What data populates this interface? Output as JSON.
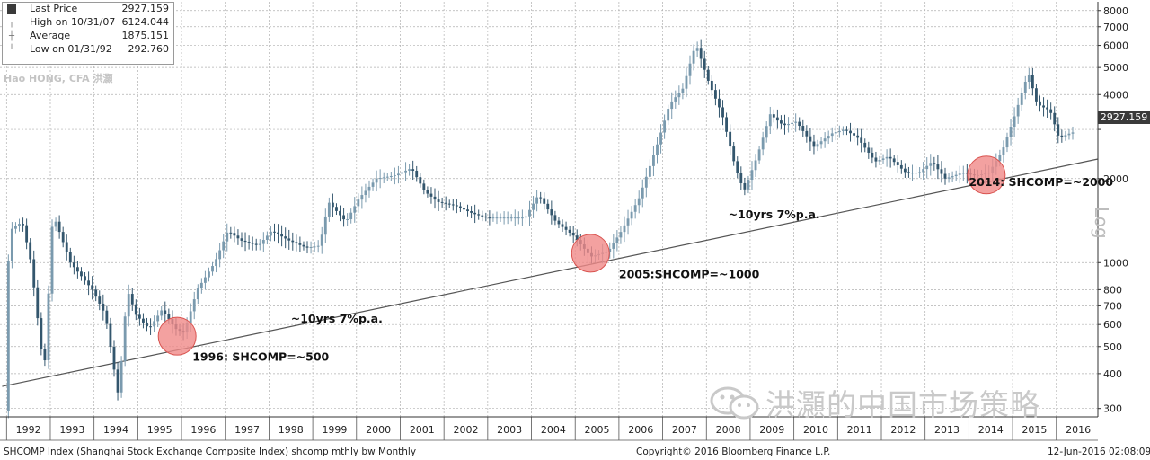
{
  "legend": {
    "rows": [
      {
        "icon": "square-icon",
        "label": "Last Price",
        "value": "2927.159"
      },
      {
        "icon": "high-marker-icon",
        "label": "High on 10/31/07",
        "value": "6124.044"
      },
      {
        "icon": "average-marker-icon",
        "label": "Average",
        "value": "1875.151"
      },
      {
        "icon": "low-marker-icon",
        "label": "Low on 01/31/92",
        "value": "292.760"
      }
    ]
  },
  "credit": "Hao HONG, CFA 洪灝",
  "watermark": "洪灝的中国市场策略",
  "footer": {
    "left": "SHCOMP Index (Shanghai Stock Exchange Composite Index) shcomp mthly bw  Monthly",
    "center": "Copyright© 2016 Bloomberg Finance L.P.",
    "right": "12-Jun-2016 02:08:09"
  },
  "colors": {
    "up": "#7a9aae",
    "down": "#33566d",
    "trend": "#555555",
    "circle": "#f08a88",
    "grid": "#b0b0b0"
  },
  "chart_data": {
    "type": "candlestick",
    "scale": "log",
    "ylim": [
      280,
      8600
    ],
    "y_ticks": [
      300,
      400,
      500,
      600,
      700,
      800,
      1000,
      2000,
      3000,
      4000,
      5000,
      6000,
      7000,
      8000
    ],
    "y_tick_labels": [
      "300",
      "400",
      "500",
      "600",
      "700",
      "800",
      "1000",
      "2000",
      "",
      "4000",
      "5000",
      "6000",
      "7000",
      "8000"
    ],
    "x_labels": [
      "1992",
      "1993",
      "1994",
      "1995",
      "1996",
      "1997",
      "1998",
      "1999",
      "2000",
      "2001",
      "2002",
      "2003",
      "2004",
      "2005",
      "2006",
      "2007",
      "2008",
      "2009",
      "2010",
      "2011",
      "2012",
      "2013",
      "2014",
      "2015",
      "2016"
    ],
    "last_price_label": "2927.159",
    "y_axis_title": "Log",
    "series": [
      {
        "x": 1992.0,
        "v": 292.76
      },
      {
        "x": 1992.1,
        "v": 1300
      },
      {
        "x": 1992.4,
        "v": 1400
      },
      {
        "x": 1992.6,
        "v": 1000
      },
      {
        "x": 1992.9,
        "v": 400
      },
      {
        "x": 1993.1,
        "v": 1500
      },
      {
        "x": 1993.5,
        "v": 1000
      },
      {
        "x": 1994.0,
        "v": 800
      },
      {
        "x": 1994.3,
        "v": 650
      },
      {
        "x": 1994.6,
        "v": 330
      },
      {
        "x": 1994.8,
        "v": 800
      },
      {
        "x": 1995.0,
        "v": 650
      },
      {
        "x": 1995.3,
        "v": 580
      },
      {
        "x": 1995.6,
        "v": 680
      },
      {
        "x": 1995.9,
        "v": 580
      },
      {
        "x": 1996.1,
        "v": 560
      },
      {
        "x": 1996.4,
        "v": 800
      },
      {
        "x": 1996.8,
        "v": 1000
      },
      {
        "x": 1997.1,
        "v": 1300
      },
      {
        "x": 1997.4,
        "v": 1200
      },
      {
        "x": 1997.8,
        "v": 1150
      },
      {
        "x": 1998.1,
        "v": 1300
      },
      {
        "x": 1998.5,
        "v": 1200
      },
      {
        "x": 1998.9,
        "v": 1130
      },
      {
        "x": 1999.2,
        "v": 1150
      },
      {
        "x": 1999.4,
        "v": 1650
      },
      {
        "x": 1999.8,
        "v": 1400
      },
      {
        "x": 2000.1,
        "v": 1700
      },
      {
        "x": 2000.5,
        "v": 2000
      },
      {
        "x": 2000.9,
        "v": 2050
      },
      {
        "x": 2001.3,
        "v": 2180
      },
      {
        "x": 2001.6,
        "v": 1800
      },
      {
        "x": 2001.9,
        "v": 1650
      },
      {
        "x": 2002.3,
        "v": 1600
      },
      {
        "x": 2002.7,
        "v": 1500
      },
      {
        "x": 2003.0,
        "v": 1450
      },
      {
        "x": 2003.5,
        "v": 1450
      },
      {
        "x": 2003.9,
        "v": 1450
      },
      {
        "x": 2004.2,
        "v": 1750
      },
      {
        "x": 2004.6,
        "v": 1400
      },
      {
        "x": 2005.0,
        "v": 1250
      },
      {
        "x": 2005.4,
        "v": 1050
      },
      {
        "x": 2005.8,
        "v": 1100
      },
      {
        "x": 2006.1,
        "v": 1300
      },
      {
        "x": 2006.5,
        "v": 1700
      },
      {
        "x": 2006.9,
        "v": 2600
      },
      {
        "x": 2007.2,
        "v": 3700
      },
      {
        "x": 2007.5,
        "v": 4200
      },
      {
        "x": 2007.8,
        "v": 6100
      },
      {
        "x": 2008.1,
        "v": 4400
      },
      {
        "x": 2008.4,
        "v": 3400
      },
      {
        "x": 2008.7,
        "v": 2200
      },
      {
        "x": 2008.9,
        "v": 1800
      },
      {
        "x": 2009.2,
        "v": 2400
      },
      {
        "x": 2009.5,
        "v": 3400
      },
      {
        "x": 2009.8,
        "v": 3100
      },
      {
        "x": 2010.1,
        "v": 3200
      },
      {
        "x": 2010.5,
        "v": 2600
      },
      {
        "x": 2010.9,
        "v": 2900
      },
      {
        "x": 2011.2,
        "v": 3000
      },
      {
        "x": 2011.5,
        "v": 2800
      },
      {
        "x": 2011.9,
        "v": 2300
      },
      {
        "x": 2012.2,
        "v": 2400
      },
      {
        "x": 2012.6,
        "v": 2100
      },
      {
        "x": 2012.9,
        "v": 2100
      },
      {
        "x": 2013.2,
        "v": 2300
      },
      {
        "x": 2013.5,
        "v": 2000
      },
      {
        "x": 2013.9,
        "v": 2100
      },
      {
        "x": 2014.2,
        "v": 2050
      },
      {
        "x": 2014.5,
        "v": 2100
      },
      {
        "x": 2014.8,
        "v": 2500
      },
      {
        "x": 2015.1,
        "v": 3400
      },
      {
        "x": 2015.4,
        "v": 4800
      },
      {
        "x": 2015.6,
        "v": 3700
      },
      {
        "x": 2015.9,
        "v": 3500
      },
      {
        "x": 2016.1,
        "v": 2800
      },
      {
        "x": 2016.4,
        "v": 2927.159
      }
    ],
    "trendline": {
      "points": [
        {
          "x": 1991.9,
          "v": 360
        },
        {
          "x": 2016.95,
          "v": 2350
        }
      ]
    },
    "annotations": [
      {
        "text": "1996: SHCOMP=~500",
        "x": 1996.25,
        "v": 445,
        "circle": {
          "x": 1995.9,
          "v": 545
        }
      },
      {
        "text": "~10yrs 7%p.a.",
        "x": 1998.5,
        "v": 610
      },
      {
        "text": "2005:SHCOMP=~1000",
        "x": 2006.0,
        "v": 880,
        "circle": {
          "x": 2005.35,
          "v": 1080
        }
      },
      {
        "text": "~10yrs 7%p.a.",
        "x": 2008.5,
        "v": 1440
      },
      {
        "text": "2014: SHCOMP=~2000",
        "x": 2014.0,
        "v": 1880,
        "circle": {
          "x": 2014.4,
          "v": 2060
        }
      }
    ]
  }
}
